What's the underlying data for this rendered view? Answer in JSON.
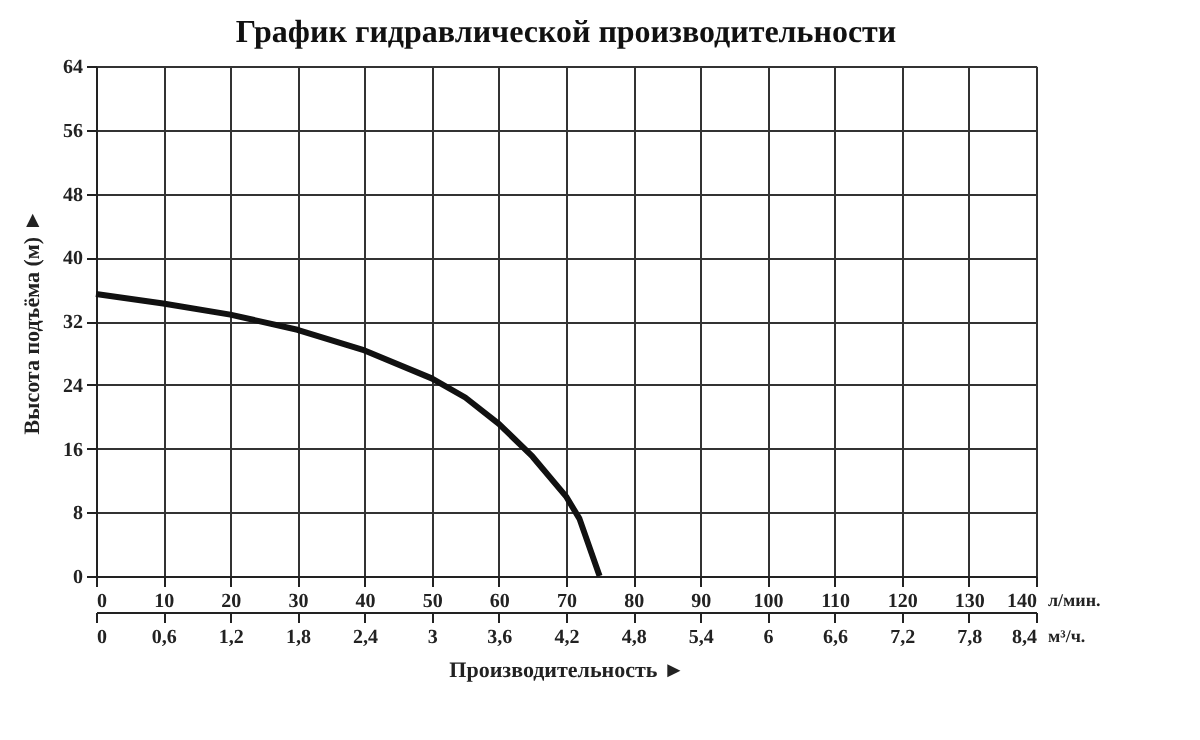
{
  "chart_data": {
    "type": "line",
    "title": "График гидравлической производительности",
    "xlabel": "Производительность ►",
    "ylabel": "Высота подъёма (м) ►",
    "x": [
      0,
      10,
      20,
      30,
      40,
      50,
      55,
      60,
      65,
      70,
      72,
      75
    ],
    "series": [
      {
        "color": "#111111",
        "values": [
          35.4,
          34.2,
          32.8,
          30.9,
          28.3,
          24.8,
          22.4,
          19.1,
          15.0,
          10.0,
          7.2,
          0
        ]
      }
    ],
    "xlim": [
      0,
      140
    ],
    "xticks": [
      0,
      10,
      20,
      30,
      40,
      50,
      60,
      70,
      80,
      90,
      100,
      110,
      120,
      130,
      140
    ],
    "x2lim": [
      0,
      8.4
    ],
    "x2ticks": [
      0,
      {
        "value": 0.6,
        "label": "0,6"
      },
      {
        "value": 1.2,
        "label": "1,2"
      },
      {
        "value": 1.8,
        "label": "1,8"
      },
      {
        "value": 2.4,
        "label": "2,4"
      },
      3,
      {
        "value": 3.6,
        "label": "3,6"
      },
      {
        "value": 4.2,
        "label": "4,2"
      },
      {
        "value": 4.8,
        "label": "4,8"
      },
      {
        "value": 5.4,
        "label": "5,4"
      },
      6,
      {
        "value": 6.6,
        "label": "6,6"
      },
      {
        "value": 7.2,
        "label": "7,2"
      },
      {
        "value": 7.8,
        "label": "7,8"
      },
      {
        "value": 8.4,
        "label": "8,4"
      }
    ],
    "ylim": [
      0,
      64
    ],
    "yticks": [
      0,
      8,
      16,
      24,
      32,
      40,
      48,
      56,
      64
    ],
    "annotations": [
      "л/мин.",
      "м³/ч."
    ],
    "grid": true,
    "marker": "none",
    "line_style": "solid"
  }
}
